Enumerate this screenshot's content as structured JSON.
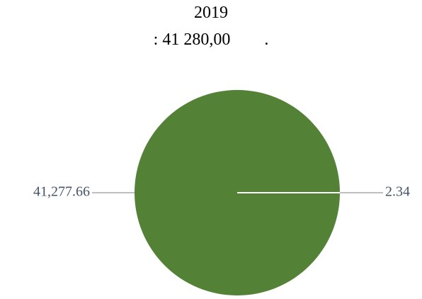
{
  "chart_data": {
    "type": "pie",
    "title_lines": [
      "2019",
      ": 41 280,00        ."
    ],
    "values": [
      41277.66,
      2.34
    ],
    "data_labels": [
      "41,277.66",
      "2.34"
    ],
    "colors": [
      "#538135",
      "#ffffff"
    ],
    "label_color": "#44546a",
    "leader_color": "#7f7f7f",
    "legend": "none"
  }
}
